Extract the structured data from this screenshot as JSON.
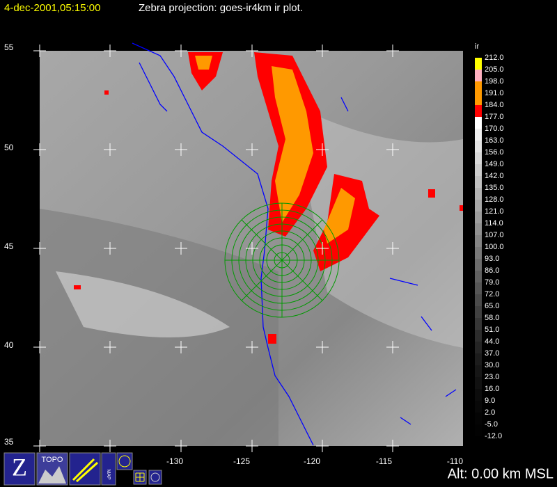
{
  "header": {
    "timestamp": "4-dec-2001,05:15:00",
    "title": "Zebra projection: goes-ir4km ir  plot."
  },
  "map": {
    "lat_labels": [
      "55",
      "50",
      "45",
      "40",
      "35"
    ],
    "lon_labels": [
      "-130",
      "-125",
      "-120",
      "-115",
      "-110"
    ]
  },
  "colorbar": {
    "label": "ir",
    "ticks": [
      "212.0",
      "205.0",
      "198.0",
      "191.0",
      "184.0",
      "177.0",
      "170.0",
      "163.0",
      "156.0",
      "149.0",
      "142.0",
      "135.0",
      "128.0",
      "121.0",
      "114.0",
      "107.0",
      "100.0",
      "93.0",
      "86.0",
      "79.0",
      "72.0",
      "65.0",
      "58.0",
      "51.0",
      "44.0",
      "37.0",
      "30.0",
      "23.0",
      "16.0",
      "9.0",
      "2.0",
      "-5.0",
      "-12.0"
    ],
    "colors": [
      "#ffff00",
      "#ffb0c0",
      "#ff9900",
      "#ff9900",
      "#ff0000",
      "#ffffff",
      "#f0f0f0",
      "#e4e4e4",
      "#d8d8d8",
      "#cccccc",
      "#c0c0c0",
      "#b4b4b4",
      "#a8a8a8",
      "#9c9c9c",
      "#909090",
      "#848484",
      "#787878",
      "#6c6c6c",
      "#606060",
      "#555555",
      "#4a4a4a",
      "#404040",
      "#363636",
      "#2c2c2c",
      "#242424",
      "#1c1c1c",
      "#161616",
      "#111111",
      "#0c0c0c",
      "#080808",
      "#040404",
      "#020202",
      "#000000"
    ]
  },
  "footer": {
    "altitude": "Alt: 0.00 km MSL"
  },
  "toolbar": {
    "topo": "TOPO",
    "map": "MAP",
    "zebra": "Z"
  }
}
